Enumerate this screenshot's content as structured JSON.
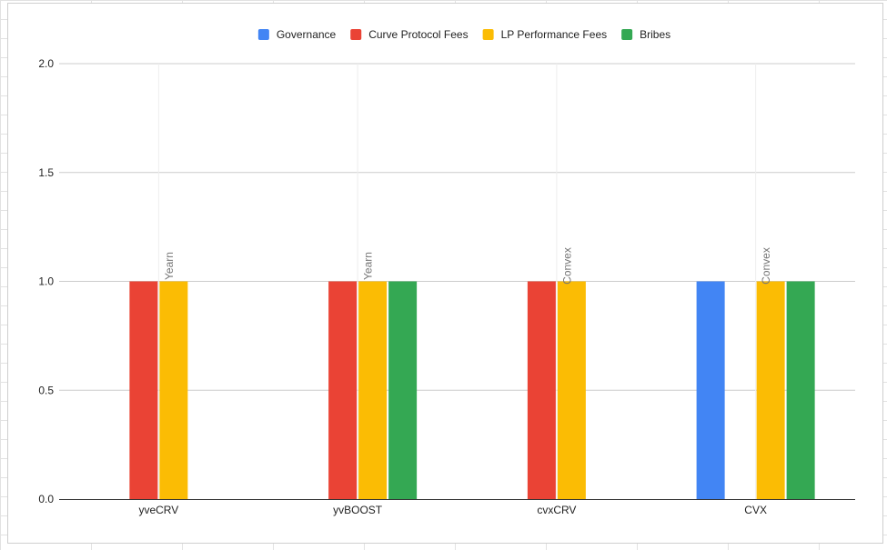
{
  "chart_data": {
    "type": "bar",
    "categories": [
      "yveCRV",
      "yvBOOST",
      "cvxCRV",
      "CVX"
    ],
    "series": [
      {
        "name": "Governance",
        "color": "#4285f4",
        "values": [
          null,
          null,
          null,
          1.0
        ]
      },
      {
        "name": "Curve Protocol Fees",
        "color": "#ea4335",
        "values": [
          1.0,
          1.0,
          1.0,
          null
        ]
      },
      {
        "name": "LP Performance Fees",
        "color": "#fbbc04",
        "values": [
          1.0,
          1.0,
          1.0,
          1.0
        ]
      },
      {
        "name": "Bribes",
        "color": "#34a853",
        "values": [
          null,
          1.0,
          null,
          1.0
        ]
      }
    ],
    "annotations": [
      {
        "category": "yveCRV",
        "series": "LP Performance Fees",
        "text": "Yearn"
      },
      {
        "category": "yvBOOST",
        "series": "LP Performance Fees",
        "text": "Yearn"
      },
      {
        "category": "cvxCRV",
        "series": "LP Performance Fees",
        "text": "Convex"
      },
      {
        "category": "CVX",
        "series": "LP Performance Fees",
        "text": "Convex"
      }
    ],
    "yticks": [
      "0.0",
      "0.5",
      "1.0",
      "1.5",
      "2.0"
    ],
    "ylim": [
      0,
      2.0
    ],
    "title": "",
    "xlabel": "",
    "ylabel": "",
    "grid": true,
    "legend_position": "top"
  }
}
